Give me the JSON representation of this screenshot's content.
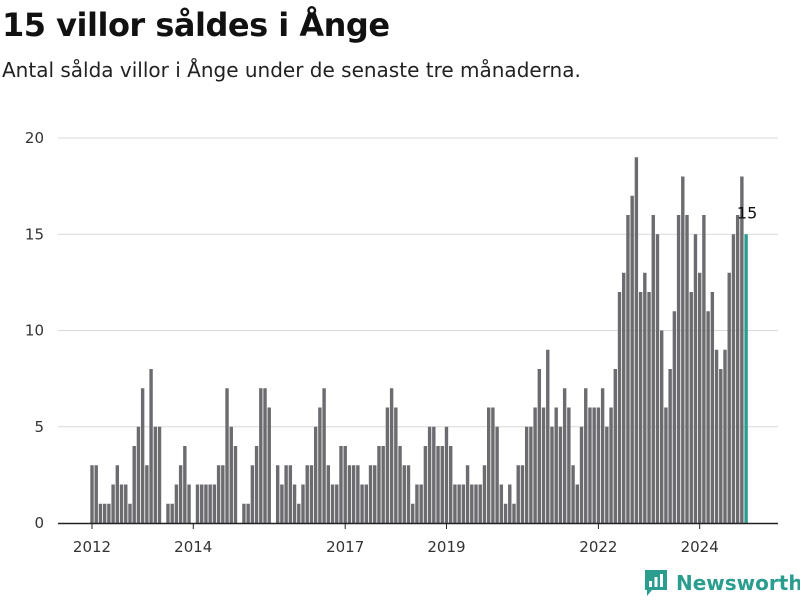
{
  "title": "15 villor såldes i Ånge",
  "subtitle": "Antal sålda villor i Ånge under de senaste tre månaderna.",
  "brand": "Newsworthy",
  "colors": {
    "bar": "#6b6b70",
    "highlight": "#2a9d8f",
    "grid": "#d9d9d9",
    "axis": "#333333"
  },
  "chart_data": {
    "type": "bar",
    "title": "15 villor såldes i Ånge",
    "subtitle": "Antal sålda villor i Ånge under de senaste tre månaderna.",
    "xlabel": "",
    "ylabel": "",
    "ylim": [
      0,
      20
    ],
    "y_ticks": [
      0,
      5,
      10,
      15,
      20
    ],
    "x_ticks": [
      "2012",
      "2014",
      "2017",
      "2019",
      "2022",
      "2024"
    ],
    "x_tick_months": [
      0,
      24,
      60,
      84,
      120,
      144
    ],
    "grid": true,
    "legend": "none",
    "start": "2012-01",
    "end": "2024-12",
    "highlight": {
      "period": "2024-12",
      "value": 15,
      "label": "15"
    },
    "values": [
      3,
      3,
      1,
      1,
      1,
      2,
      3,
      2,
      2,
      1,
      4,
      5,
      7,
      3,
      8,
      5,
      5,
      0,
      1,
      1,
      2,
      3,
      4,
      2,
      0,
      2,
      2,
      2,
      2,
      2,
      3,
      3,
      7,
      5,
      4,
      0,
      1,
      1,
      3,
      4,
      7,
      7,
      6,
      0,
      3,
      2,
      3,
      3,
      2,
      1,
      2,
      3,
      3,
      5,
      6,
      7,
      3,
      2,
      2,
      4,
      4,
      3,
      3,
      3,
      2,
      2,
      3,
      3,
      4,
      4,
      6,
      7,
      6,
      4,
      3,
      3,
      1,
      2,
      2,
      4,
      5,
      5,
      4,
      4,
      5,
      4,
      2,
      2,
      2,
      3,
      2,
      2,
      2,
      3,
      6,
      6,
      5,
      2,
      1,
      2,
      1,
      3,
      3,
      5,
      5,
      6,
      8,
      6,
      9,
      5,
      6,
      5,
      7,
      6,
      3,
      2,
      5,
      7,
      6,
      6,
      6,
      7,
      5,
      6,
      8,
      12,
      13,
      16,
      17,
      19,
      12,
      13,
      12,
      16,
      15,
      10,
      6,
      8,
      11,
      16,
      18,
      16,
      12,
      15,
      13,
      16,
      11,
      12,
      9,
      8,
      9,
      13,
      15,
      16,
      18,
      15
    ]
  }
}
